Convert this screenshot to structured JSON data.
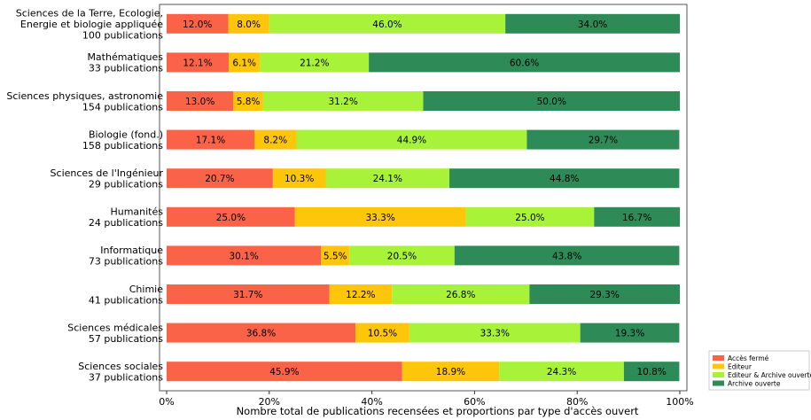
{
  "chart_data": {
    "type": "bar",
    "orientation": "horizontal",
    "stacked": true,
    "xlabel": "Nombre total de publications recensées et proportions par type d'accès ouvert",
    "xlim": [
      0,
      100
    ],
    "x_ticks": [
      "0%",
      "20%",
      "40%",
      "60%",
      "80%",
      "100%"
    ],
    "categories": [
      [
        "Sciences de la Terre, Ecologie,",
        "Energie et biologie appliquée",
        "100 publications"
      ],
      [
        "Mathématiques",
        "33 publications"
      ],
      [
        "Sciences physiques, astronomie",
        "154 publications"
      ],
      [
        "Biologie (fond.)",
        "158 publications"
      ],
      [
        "Sciences de l'Ingénieur",
        "29 publications"
      ],
      [
        "Humanités",
        "24 publications"
      ],
      [
        "Informatique",
        "73 publications"
      ],
      [
        "Chimie",
        "41 publications"
      ],
      [
        "Sciences médicales",
        "57 publications"
      ],
      [
        "Sciences sociales",
        "37 publications"
      ]
    ],
    "series": [
      {
        "name": "Accès fermé",
        "color": "#fa6347",
        "values": [
          12.0,
          12.1,
          13.0,
          17.1,
          20.7,
          25.0,
          30.1,
          31.7,
          36.8,
          45.9
        ],
        "labels": [
          "12.0%",
          "12.1%",
          "13.0%",
          "17.1%",
          "20.7%",
          "25.0%",
          "30.1%",
          "31.7%",
          "36.8%",
          "45.9%"
        ]
      },
      {
        "name": "Editeur",
        "color": "#fec60a",
        "values": [
          8.0,
          6.1,
          5.8,
          8.2,
          10.3,
          33.3,
          5.5,
          12.2,
          10.5,
          18.9
        ],
        "labels": [
          "8.0%",
          "6.1%",
          "5.8%",
          "8.2%",
          "10.3%",
          "33.3%",
          "5.5%",
          "12.2%",
          "10.5%",
          "18.9%"
        ]
      },
      {
        "name": "Editeur & Archive ouverte",
        "color": "#a8f33a",
        "values": [
          46.0,
          21.2,
          31.2,
          44.9,
          24.1,
          25.0,
          20.5,
          26.8,
          33.3,
          24.3
        ],
        "labels": [
          "46.0%",
          "21.2%",
          "31.2%",
          "44.9%",
          "24.1%",
          "25.0%",
          "20.5%",
          "26.8%",
          "33.3%",
          "24.3%"
        ]
      },
      {
        "name": "Archive ouverte",
        "color": "#2e8b57",
        "values": [
          34.0,
          60.6,
          50.0,
          29.7,
          44.8,
          16.7,
          43.8,
          29.3,
          19.3,
          10.8
        ],
        "labels": [
          "34.0%",
          "60.6%",
          "50.0%",
          "29.7%",
          "44.8%",
          "16.7%",
          "43.8%",
          "29.3%",
          "19.3%",
          "10.8%"
        ]
      }
    ],
    "legend_position": "lower-right",
    "grid": false
  }
}
